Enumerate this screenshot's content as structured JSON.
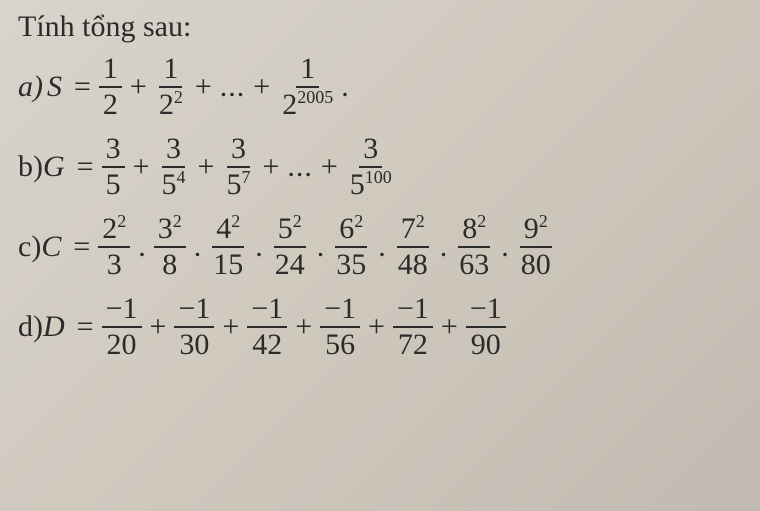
{
  "title": "Tính tổng sau:",
  "problems": {
    "a": {
      "label": "a)",
      "var": "S",
      "eq": "=",
      "t1_num": "1",
      "t1_den": "2",
      "plus": "+",
      "t2_num": "1",
      "t2_den_base": "2",
      "t2_den_exp": "2",
      "dots": "...",
      "tn_num": "1",
      "tn_den_base": "2",
      "tn_den_exp": "2005",
      "period": "."
    },
    "b": {
      "label": "b)",
      "var": "G",
      "eq": "=",
      "t1_num": "3",
      "t1_den": "5",
      "plus": "+",
      "t2_num": "3",
      "t2_den_base": "5",
      "t2_den_exp": "4",
      "t3_num": "3",
      "t3_den_base": "5",
      "t3_den_exp": "7",
      "dots": "...",
      "tn_num": "3",
      "tn_den_base": "5",
      "tn_den_exp": "100"
    },
    "c": {
      "label": "c)",
      "var": "C",
      "eq": "=",
      "dot": ".",
      "terms": [
        {
          "num_base": "2",
          "num_exp": "2",
          "den": "3"
        },
        {
          "num_base": "3",
          "num_exp": "2",
          "den": "8"
        },
        {
          "num_base": "4",
          "num_exp": "2",
          "den": "15"
        },
        {
          "num_base": "5",
          "num_exp": "2",
          "den": "24"
        },
        {
          "num_base": "6",
          "num_exp": "2",
          "den": "35"
        },
        {
          "num_base": "7",
          "num_exp": "2",
          "den": "48"
        },
        {
          "num_base": "8",
          "num_exp": "2",
          "den": "63"
        },
        {
          "num_base": "9",
          "num_exp": "2",
          "den": "80"
        }
      ]
    },
    "d": {
      "label": "d)",
      "var": "D",
      "eq": "=",
      "plus": "+",
      "terms": [
        {
          "num": "−1",
          "den": "20"
        },
        {
          "num": "−1",
          "den": "30"
        },
        {
          "num": "−1",
          "den": "42"
        },
        {
          "num": "−1",
          "den": "56"
        },
        {
          "num": "−1",
          "den": "72"
        },
        {
          "num": "−1",
          "den": "90"
        }
      ]
    }
  }
}
